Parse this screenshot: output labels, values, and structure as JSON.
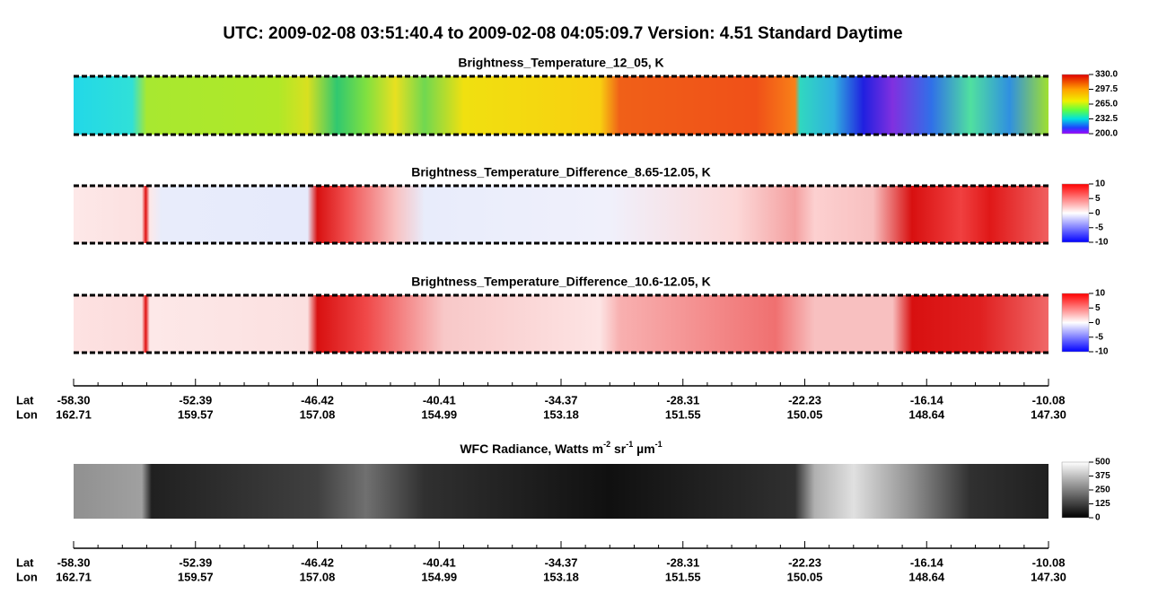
{
  "title": "UTC:  2009-02-08   03:51:40.4  to  2009-02-08   04:05:09.7   Version: 4.51  Standard Daytime",
  "panels": [
    {
      "title": "Brightness_Temperature_12_05, K",
      "colorbar": [
        "330.0",
        "297.5",
        "265.0",
        "232.5",
        "200.0"
      ]
    },
    {
      "title": "Brightness_Temperature_Difference_8.65-12.05, K",
      "colorbar": [
        "10",
        "5",
        "0",
        "-5",
        "-10"
      ]
    },
    {
      "title": "Brightness_Temperature_Difference_10.6-12.05, K",
      "colorbar": [
        "10",
        "5",
        "0",
        "-5",
        "-10"
      ]
    },
    {
      "title": [
        "WFC Radiance, Watts m",
        " sr",
        " µm"
      ],
      "title_superscripts": [
        "-2",
        "-1",
        "-1"
      ],
      "colorbar": [
        "500",
        "375",
        "250",
        "125",
        "0"
      ]
    }
  ],
  "axes": [
    {
      "lat_label": "Lat",
      "lon_label": "Lon",
      "lat": [
        "-58.30",
        "-52.39",
        "-46.42",
        "-40.41",
        "-34.37",
        "-28.31",
        "-22.23",
        "-16.14",
        "-10.08"
      ],
      "lon": [
        "162.71",
        "159.57",
        "157.08",
        "154.99",
        "153.18",
        "151.55",
        "150.05",
        "148.64",
        "147.30"
      ]
    },
    {
      "lat_label": "Lat",
      "lon_label": "Lon",
      "lat": [
        "-58.30",
        "-52.39",
        "-46.42",
        "-40.41",
        "-34.37",
        "-28.31",
        "-22.23",
        "-16.14",
        "-10.08"
      ],
      "lon": [
        "162.71",
        "159.57",
        "157.08",
        "154.99",
        "153.18",
        "151.55",
        "150.05",
        "148.64",
        "147.30"
      ]
    }
  ]
}
